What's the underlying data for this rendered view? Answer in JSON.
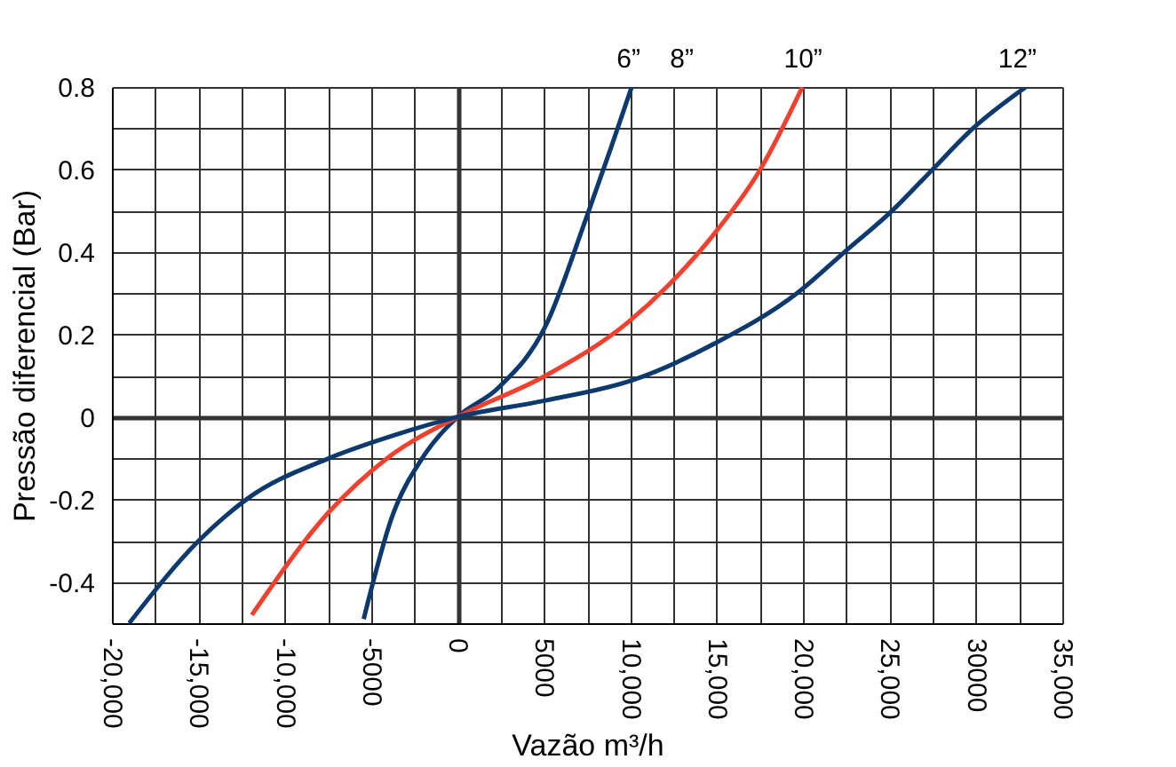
{
  "chart_data": {
    "type": "line",
    "xlabel": "Vazão m³/h",
    "ylabel": "Pressão diferencial (Bar)",
    "xlim": [
      -20000,
      35000
    ],
    "ylim": [
      -0.5,
      0.8
    ],
    "xticks": [
      {
        "value": -20000,
        "label": "-20,000"
      },
      {
        "value": -17500,
        "label": null
      },
      {
        "value": -15000,
        "label": "-15,000"
      },
      {
        "value": -12500,
        "label": null
      },
      {
        "value": -10000,
        "label": "-10,000"
      },
      {
        "value": -7500,
        "label": null
      },
      {
        "value": -5000,
        "label": "-5000"
      },
      {
        "value": -2500,
        "label": null
      },
      0,
      {
        "value": 2500,
        "label": null
      },
      5000,
      {
        "value": 7500,
        "label": null
      },
      {
        "value": 10000,
        "label": "10,000"
      },
      {
        "value": 12500,
        "label": null
      },
      {
        "value": 15000,
        "label": "15,000"
      },
      {
        "value": 17500,
        "label": null
      },
      {
        "value": 20000,
        "label": "20,000"
      },
      {
        "value": 22500,
        "label": null
      },
      {
        "value": 25000,
        "label": "25,000"
      },
      {
        "value": 27500,
        "label": null
      },
      30000,
      {
        "value": 32500,
        "label": null
      },
      {
        "value": 35000,
        "label": "35,000"
      }
    ],
    "yticks": [
      -0.4,
      {
        "value": -0.5,
        "label": null
      },
      {
        "value": -0.3,
        "label": null
      },
      -0.2,
      {
        "value": -0.1,
        "label": null
      },
      0,
      {
        "value": 0.1,
        "label": null
      },
      0.2,
      {
        "value": 0.3,
        "label": null
      },
      0.4,
      {
        "value": 0.5,
        "label": null
      },
      0.6,
      {
        "value": 0.7,
        "label": null
      },
      0.8
    ],
    "grid": true,
    "line_style": "solid",
    "marker": "none",
    "series": [
      {
        "color": "#0d3a6e",
        "x": [
          -5430,
          -3770,
          -2040,
          0,
          2340,
          5090,
          7430,
          8860,
          10080
        ],
        "values": [
          -0.49,
          -0.24,
          -0.1,
          0,
          0.07,
          0.22,
          0.48,
          0.65,
          0.8
        ]
      },
      {
        "color": "#f0412f",
        "x": [
          -11900,
          -7430,
          -4070,
          0,
          5090,
          9880,
          12220,
          14970,
          17520,
          19960
        ],
        "values": [
          -0.48,
          -0.23,
          -0.1,
          0,
          0.1,
          0.23,
          0.32,
          0.45,
          0.6,
          0.8
        ]
      },
      {
        "color": "#0d3a6e",
        "x": [
          -19000,
          -14970,
          -12220,
          -7430,
          -3360,
          0,
          5090,
          10180,
          14970,
          19650,
          22400,
          25150,
          27490,
          29840,
          32890
        ],
        "values": [
          -0.5,
          -0.3,
          -0.2,
          -0.1,
          -0.04,
          0,
          0.04,
          0.09,
          0.18,
          0.3,
          0.4,
          0.5,
          0.6,
          0.7,
          0.8
        ]
      }
    ],
    "annotations": [
      {
        "text": "6”",
        "x": 9900,
        "y": 0.8
      },
      "8”",
      {
        "text": "10”",
        "x": 20000,
        "y": 0.8
      },
      {
        "text": "12”",
        "x": 32400,
        "y": 0.8
      }
    ]
  }
}
